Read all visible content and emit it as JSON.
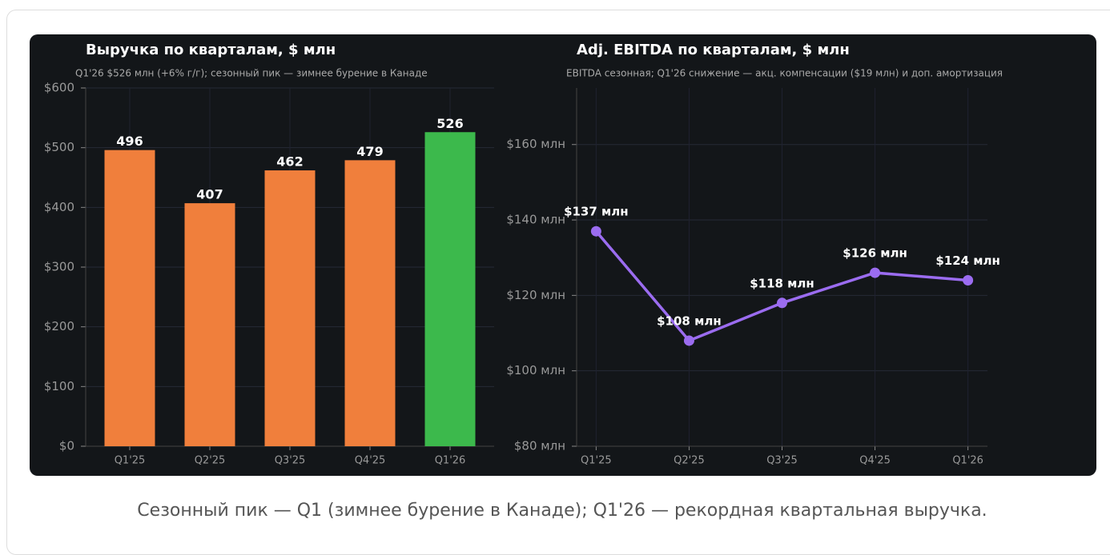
{
  "charts": [
    {
      "chart_data": {
        "type": "bar",
        "title": "Выручка по кварталам, $ млн",
        "subtitle": "Q1'26 $526 млн (+6% г/г); сезонный пик — зимнее бурение в Канаде",
        "categories": [
          "Q1'25",
          "Q2'25",
          "Q3'25",
          "Q4'25",
          "Q1'26"
        ],
        "values": [
          496,
          407,
          462,
          479,
          526
        ],
        "colors": [
          "#f07f3c",
          "#f07f3c",
          "#f07f3c",
          "#f07f3c",
          "#3cb94c"
        ],
        "ylim": [
          0,
          600
        ],
        "yticks": [
          {
            "value": 0,
            "label": "$0"
          },
          {
            "value": 100,
            "label": "$100"
          },
          {
            "value": 200,
            "label": "$200"
          },
          {
            "value": 300,
            "label": "$300"
          },
          {
            "value": 400,
            "label": "$400"
          },
          {
            "value": 500,
            "label": "$500"
          },
          {
            "value": 600,
            "label": "$600"
          }
        ],
        "grid": true
      }
    },
    {
      "chart_data": {
        "type": "line",
        "title": "Adj. EBITDA по кварталам, $ млн",
        "subtitle": "EBITDA сезонная; Q1'26 снижение — акц. компенсации ($19 млн) и доп. амортизация",
        "categories": [
          "Q1'25",
          "Q2'25",
          "Q3'25",
          "Q4'25",
          "Q1'26"
        ],
        "values": [
          137,
          108,
          118,
          126,
          124
        ],
        "value_labels": [
          "$137 млн",
          "$108 млн",
          "$118 млн",
          "$126 млн",
          "$124 млн"
        ],
        "color": "#9b6cf0",
        "ylim": [
          80,
          175
        ],
        "yticks": [
          {
            "value": 80,
            "label": "$80 млн"
          },
          {
            "value": 100,
            "label": "$100 млн"
          },
          {
            "value": 120,
            "label": "$120 млн"
          },
          {
            "value": 140,
            "label": "$140 млн"
          },
          {
            "value": 160,
            "label": "$160 млн"
          }
        ],
        "grid": true
      }
    }
  ],
  "caption": "Сезонный пик — Q1 (зимнее бурение в Канаде); Q1'26 — рекордная квартальная выручка."
}
